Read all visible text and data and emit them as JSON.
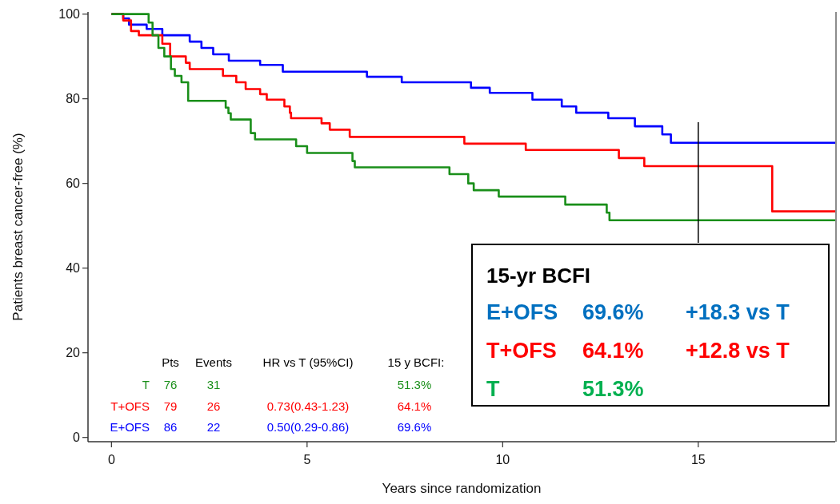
{
  "chart_data": {
    "type": "step",
    "xlabel": "Years since randomization",
    "ylabel": "Patients breast cancer-free (%)",
    "xlim": [
      -0.6,
      18.5
    ],
    "xticks": [
      0,
      5,
      10,
      15
    ],
    "ylim": [
      -1,
      100.5
    ],
    "yticks": [
      0,
      20,
      40,
      60,
      80,
      100
    ],
    "grid": false,
    "line_style": "solid",
    "marker": "none",
    "series": [
      {
        "color": "#0000ff",
        "x": [
          0,
          0.3,
          0.45,
          0.9,
          1.3,
          2.0,
          2.3,
          2.6,
          3.0,
          3.8,
          4.38,
          6.53,
          7.42,
          9.19,
          9.67,
          10.76,
          11.51,
          11.88,
          12.7,
          13.38,
          14.08,
          14.3,
          18.5
        ],
        "values": [
          100,
          99,
          97.5,
          96.5,
          95,
          93.5,
          92,
          90.5,
          89,
          88,
          86.4,
          85.2,
          83.9,
          82.6,
          81.4,
          79.8,
          78.2,
          76.7,
          75.4,
          73.5,
          71.6,
          69.6,
          69.6
        ]
      },
      {
        "color": "#ff0000",
        "x": [
          0,
          0.3,
          0.5,
          0.7,
          1.3,
          1.5,
          1.9,
          2.0,
          2.85,
          3.19,
          3.43,
          3.8,
          3.97,
          4.42,
          4.56,
          4.59,
          5.37,
          5.58,
          6.09,
          9.02,
          10.59,
          12.97,
          13.62,
          16.89,
          18.5
        ],
        "values": [
          100,
          98.5,
          96,
          95,
          93,
          90,
          88.5,
          87,
          85.4,
          83.9,
          82.3,
          81.1,
          79.8,
          78.2,
          76.7,
          75.4,
          74.2,
          72.7,
          71,
          69.4,
          67.9,
          66,
          64.1,
          53.4,
          53.4
        ]
      },
      {
        "color": "#1a8f1a",
        "x": [
          0,
          0.95,
          1.05,
          1.2,
          1.35,
          1.52,
          1.62,
          1.79,
          1.96,
          2.92,
          2.99,
          3.05,
          3.56,
          3.67,
          4.72,
          5.0,
          6.16,
          6.22,
          8.64,
          9.12,
          9.26,
          9.9,
          11.6,
          12.66,
          12.73,
          18.5
        ],
        "values": [
          100,
          98,
          95,
          92,
          90,
          87,
          85.4,
          83.9,
          79.5,
          77.9,
          76.6,
          75.1,
          71.9,
          70.4,
          68.8,
          67.2,
          65.3,
          63.8,
          62.2,
          60,
          58.4,
          56.9,
          55,
          53.1,
          51.3,
          51.3
        ]
      }
    ],
    "ref_lines": [
      {
        "axis": "x",
        "value": 15,
        "color": "#000000"
      }
    ],
    "annotations": [
      "Pts",
      "Events",
      "HR vs T (95%CI)",
      "15 y BCFI:",
      "T",
      "76",
      "31",
      "51.3%",
      "T+OFS",
      "79",
      "26",
      "0.73(0.43-1.23)",
      "64.1%",
      "E+OFS",
      "86",
      "22",
      "0.50(0.29-0.86)",
      "69.6%",
      "15-yr BCFI",
      "E+OFS",
      "69.6%",
      "+18.3 vs T",
      "T+OFS",
      "64.1%",
      "+12.8 vs T",
      "T",
      "51.3%"
    ]
  }
}
